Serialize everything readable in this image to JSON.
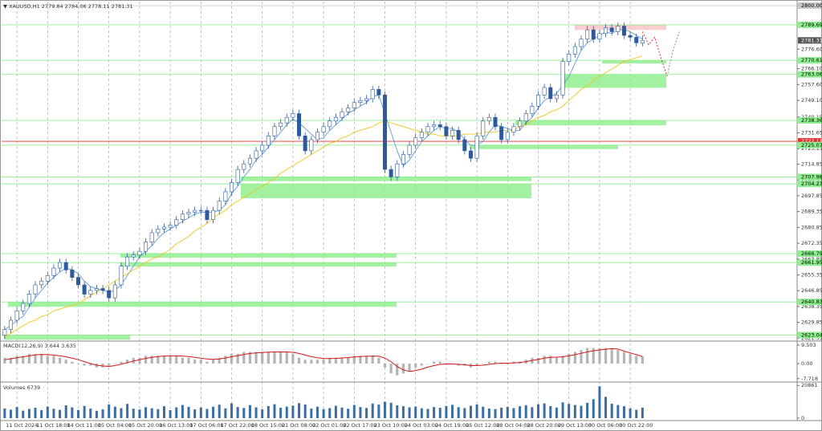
{
  "chart_data": {
    "type": "candlestick",
    "header": {
      "symbol": "XAUUSD,H1"
    },
    "categories": [
      null,
      null,
      "11 Oct 2024",
      null,
      null,
      null,
      null,
      "11 Oct 18:00",
      null,
      null,
      null,
      null,
      "14 Oct 11:00",
      null,
      null,
      null,
      null,
      "15 Oct 04:00",
      null,
      null,
      null,
      null,
      "15 Oct 20:00",
      null,
      null,
      null,
      null,
      "16 Oct 13:00",
      null,
      null,
      null,
      null,
      "17 Oct 06:00",
      null,
      null,
      null,
      null,
      "17 Oct 22:00",
      null,
      null,
      null,
      null,
      "18 Oct 15:00",
      null,
      null,
      null,
      null,
      "21 Oct 08:00",
      null,
      null,
      null,
      null,
      "22 Oct 01:00",
      null,
      null,
      null,
      null,
      "22 Oct 17:00",
      null,
      null,
      null,
      null,
      "23 Oct 10:00",
      null,
      null,
      null,
      null,
      "24 Oct 03:00",
      null,
      null,
      null,
      null,
      "24 Oct 19:00",
      null,
      null,
      null,
      null,
      "25 Oct 12:00",
      null,
      null,
      null,
      null,
      "28 Oct 04:00",
      null,
      null,
      null,
      null,
      "28 Oct 20:00",
      null,
      null,
      null,
      null,
      "29 Oct 13:00",
      null,
      null,
      null,
      null,
      "30 Oct 06:00",
      null,
      null,
      null,
      null,
      "30 Oct 22:00",
      null,
      null
    ],
    "candles": {
      "open": [
        2623,
        2626,
        2631,
        2636,
        2640,
        2645,
        2650,
        2652,
        2655,
        2659,
        2662,
        2658,
        2654,
        2650,
        2645,
        2647,
        2648,
        2647,
        2643,
        2650,
        2660,
        2665,
        2666,
        2668,
        2673,
        2678,
        2680,
        2681,
        2682,
        2685,
        2688,
        2689,
        2690,
        2690,
        2685,
        2690,
        2695,
        2700,
        2705,
        2712,
        2715,
        2718,
        2722,
        2725,
        2730,
        2735,
        2737,
        2740,
        2742,
        2730,
        2722,
        2728,
        2732,
        2735,
        2738,
        2740,
        2743,
        2745,
        2748,
        2749,
        2750,
        2755,
        2752,
        2712,
        2708,
        2715,
        2720,
        2725,
        2729,
        2732,
        2735,
        2736,
        2735,
        2730,
        2733,
        2728,
        2722,
        2718,
        2730,
        2738,
        2740,
        2735,
        2728,
        2732,
        2735,
        2738,
        2742,
        2746,
        2752,
        2756,
        2750,
        2752,
        2770,
        2774,
        2778,
        2782,
        2787,
        2782,
        2785,
        2788,
        2786,
        2789,
        2784,
        2783,
        2779.84
      ],
      "high": [
        2628,
        2633,
        2638,
        2642,
        2647,
        2652,
        2654,
        2657,
        2661,
        2664,
        2664,
        2660,
        2656,
        2652,
        2649,
        2650,
        2650,
        2649,
        2652,
        2662,
        2667,
        2668,
        2670,
        2675,
        2680,
        2682,
        2683,
        2684,
        2687,
        2690,
        2691,
        2692,
        2692,
        2692,
        2692,
        2697,
        2702,
        2707,
        2714,
        2717,
        2720,
        2724,
        2727,
        2732,
        2737,
        2739,
        2742,
        2744,
        2744,
        2732,
        2730,
        2734,
        2737,
        2740,
        2742,
        2745,
        2747,
        2750,
        2751,
        2752,
        2757,
        2757,
        2754,
        2714,
        2717,
        2722,
        2727,
        2731,
        2734,
        2737,
        2738,
        2738,
        2737,
        2735,
        2735,
        2730,
        2724,
        2732,
        2740,
        2742,
        2742,
        2737,
        2734,
        2737,
        2740,
        2744,
        2748,
        2754,
        2758,
        2758,
        2754,
        2772,
        2776,
        2780,
        2784,
        2789,
        2789,
        2787,
        2790,
        2790,
        2791,
        2791,
        2786,
        2785,
        2784.06
      ],
      "low": [
        2621,
        2624,
        2629,
        2634,
        2638,
        2643,
        2648,
        2650,
        2653,
        2657,
        2656,
        2652,
        2648,
        2643,
        2643,
        2645,
        2645,
        2641,
        2641,
        2648,
        2658,
        2663,
        2664,
        2666,
        2671,
        2676,
        2678,
        2679,
        2680,
        2683,
        2686,
        2687,
        2688,
        2683,
        2683,
        2688,
        2693,
        2698,
        2703,
        2710,
        2713,
        2716,
        2720,
        2723,
        2728,
        2733,
        2735,
        2738,
        2728,
        2720,
        2720,
        2726,
        2730,
        2733,
        2736,
        2738,
        2741,
        2743,
        2746,
        2747,
        2748,
        2750,
        2710,
        2706,
        2706,
        2713,
        2718,
        2723,
        2727,
        2730,
        2733,
        2733,
        2728,
        2728,
        2726,
        2720,
        2716,
        2716,
        2728,
        2736,
        2733,
        2726,
        2726,
        2730,
        2733,
        2736,
        2740,
        2744,
        2750,
        2748,
        2748,
        2750,
        2768,
        2772,
        2776,
        2780,
        2780,
        2780,
        2783,
        2784,
        2784,
        2782,
        2781,
        2778,
        2778.11
      ],
      "close": [
        2626,
        2631,
        2636,
        2640,
        2645,
        2650,
        2652,
        2655,
        2659,
        2662,
        2658,
        2654,
        2650,
        2645,
        2647,
        2648,
        2647,
        2643,
        2650,
        2660,
        2665,
        2666,
        2668,
        2673,
        2678,
        2680,
        2681,
        2682,
        2685,
        2688,
        2689,
        2690,
        2690,
        2685,
        2690,
        2695,
        2700,
        2705,
        2712,
        2715,
        2718,
        2722,
        2725,
        2730,
        2735,
        2737,
        2740,
        2742,
        2730,
        2722,
        2728,
        2732,
        2735,
        2738,
        2740,
        2743,
        2745,
        2748,
        2749,
        2750,
        2755,
        2752,
        2712,
        2708,
        2715,
        2720,
        2725,
        2729,
        2732,
        2735,
        2736,
        2735,
        2730,
        2733,
        2728,
        2722,
        2718,
        2730,
        2738,
        2740,
        2735,
        2728,
        2732,
        2735,
        2738,
        2742,
        2746,
        2752,
        2756,
        2750,
        2752,
        2770,
        2774,
        2778,
        2782,
        2787,
        2782,
        2785,
        2788,
        2786,
        2789,
        2784,
        2783,
        2780,
        2781.31
      ]
    },
    "up_color": "#ffffff",
    "down_color": "#2d5a9c",
    "outline_color": "#2d5a9c",
    "ylim": [
      2620.2,
      2801.3
    ],
    "yticks": [
      2621.35,
      2629.85,
      2638.35,
      2646.85,
      2655.35,
      2663.85,
      2672.35,
      2680.85,
      2689.35,
      2697.85,
      2706.35,
      2714.85,
      2723.15,
      2731.65,
      2740.15,
      {
        "value": 2749.1,
        "label": "2749.10"
      },
      {
        "value": 2757.6,
        "label": "2757.60"
      },
      {
        "value": 2766.1,
        "label": "2766.10"
      },
      {
        "value": 2776.6,
        "label": "2776.60"
      }
    ],
    "moving_averages": [
      {
        "color": "#5b9bd5",
        "values": [
          2626,
          2628,
          2631,
          2633,
          2638,
          2643,
          2647,
          2651,
          2654,
          2657,
          2659,
          2658,
          2656,
          2652,
          2649,
          2648,
          2647,
          2646,
          2647,
          2650,
          2655,
          2660,
          2665,
          2668,
          2671,
          2675,
          2678,
          2680,
          2682,
          2684,
          2686,
          2688,
          2689,
          2689,
          2689,
          2690,
          2693,
          2699,
          2703,
          2708,
          2712,
          2717,
          2720,
          2724,
          2728,
          2732,
          2736,
          2739,
          2737,
          2734,
          2731,
          2728,
          2729,
          2733,
          2736,
          2739,
          2742,
          2744,
          2746,
          2748,
          2751,
          2752,
          2742,
          2732,
          2722,
          2714,
          2717,
          2722,
          2727,
          2730,
          2733,
          2735,
          2734,
          2734,
          2732,
          2728,
          2725,
          2725,
          2727,
          2732,
          2736,
          2735,
          2734,
          2733,
          2733,
          2737,
          2740,
          2745,
          2749,
          2751,
          2753,
          2757,
          2762,
          2769,
          2776,
          2780,
          2782,
          2784,
          2786,
          2785,
          2787,
          2787,
          2786,
          2784,
          2782
        ]
      },
      {
        "color": "#f0c419",
        "values": [
          2622,
          2624,
          2626,
          2628,
          2630,
          2631,
          2633,
          2634,
          2636,
          2637,
          2638,
          2639,
          2640,
          2642,
          2644,
          2646,
          2648,
          2650,
          2652,
          2654,
          2656,
          2658,
          2660,
          2662,
          2664,
          2665,
          2667,
          2669,
          2672,
          2674,
          2676,
          2679,
          2681,
          2683,
          2686,
          2688,
          2690,
          2693,
          2695,
          2697,
          2699,
          2701,
          2703,
          2705,
          2707,
          2710,
          2712,
          2714,
          2716,
          2718,
          2720,
          2722,
          2724,
          2726,
          2727,
          2729,
          2730,
          2732,
          2733,
          2734,
          2735,
          2737,
          2738,
          2737,
          2736,
          2735,
          2734,
          2733,
          2732,
          2731,
          2731,
          2730,
          2730,
          2730,
          2730,
          2731,
          2731,
          2731,
          2732,
          2732,
          2732,
          2733,
          2733,
          2733,
          2735,
          2736,
          2738,
          2740,
          2741,
          2743,
          2744,
          2746,
          2749,
          2752,
          2755,
          2757,
          2760,
          2762,
          2764,
          2766,
          2768,
          2770,
          2771,
          2772,
          2773
        ]
      }
    ],
    "forecasts": [
      {
        "color": "#e03030",
        "x": [
          104,
          105,
          106,
          107,
          108
        ],
        "values": [
          2786,
          2779,
          2783,
          2772,
          2762
        ]
      },
      {
        "color": "#8a8a8a",
        "x": [
          108,
          109,
          110
        ],
        "values": [
          2762,
          2776,
          2786
        ]
      }
    ],
    "levels": [
      {
        "value": 2800,
        "label": "2800.00",
        "color": "#c8c8c8"
      },
      {
        "value": 2789.69,
        "color": "#90ee90"
      },
      {
        "value": 2770.61,
        "color": "#90ee90"
      },
      {
        "value": 2763.06,
        "color": "#90ee90"
      },
      {
        "value": 2738.36,
        "color": "#90ee90"
      },
      {
        "value": 2727.11,
        "color": "#e03030"
      },
      {
        "value": 2725.07,
        "color": "#90ee90"
      },
      {
        "value": 2707.98,
        "color": "#90ee90"
      },
      {
        "value": 2704.23,
        "color": "#90ee90"
      },
      {
        "value": 2666.79,
        "color": "#90ee90"
      },
      {
        "value": 2661.95,
        "color": "#90ee90"
      },
      {
        "value": 2640.83,
        "color": "#90ee90"
      },
      {
        "value": 2623.04,
        "color": "#90ee90"
      }
    ],
    "zones": [
      {
        "low": 2786.9,
        "high": 2789.69,
        "color": "#f7c6c6"
      },
      {
        "low": 2768.9,
        "high": 2770.61,
        "color": "#90ee90"
      },
      {
        "low": 2755.8,
        "high": 2763.06,
        "color": "#90ee90"
      },
      {
        "low": 2735.7,
        "high": 2738.36,
        "color": "#90ee90"
      },
      {
        "low": 2722.9,
        "high": 2725.07,
        "color": "#90ee90"
      },
      {
        "low": 2705.7,
        "high": 2707.98,
        "color": "#90ee90"
      },
      {
        "low": 2696.5,
        "high": 2704.23,
        "color": "#90ee90"
      },
      {
        "low": 2664.6,
        "high": 2666.79,
        "color": "#90ee90"
      },
      {
        "low": 2659.8,
        "high": 2661.95,
        "color": "#90ee90"
      },
      {
        "low": 2638.2,
        "high": 2640.83,
        "color": "#90ee90"
      },
      {
        "low": 2620.5,
        "high": 2623.04,
        "color": "#90ee90"
      }
    ],
    "macd": {
      "label": "MACD(12,26,9)",
      "hist_color": "#b4b4b4",
      "signal_color": "#d01818",
      "ylim": [
        -9.05,
        10.73
      ],
      "yticks": [
        9.503,
        {
          "value": 0,
          "label": "0.00"
        },
        -7.718
      ],
      "histogram": [
        3,
        3,
        4,
        4,
        5,
        5,
        5,
        4,
        4,
        3,
        2,
        1,
        0,
        -1,
        -1,
        -2,
        -2,
        -1,
        0,
        1,
        2,
        3,
        3,
        4,
        4,
        4,
        4,
        4,
        4,
        3,
        3,
        2,
        2,
        1,
        2,
        3,
        4,
        5,
        5,
        6,
        6,
        6,
        6,
        6,
        6,
        6,
        6,
        5,
        3,
        2,
        2,
        2,
        2,
        3,
        3,
        3,
        3,
        4,
        4,
        4,
        4,
        3,
        -2,
        -5,
        -6,
        -5,
        -4,
        -2,
        -1,
        0,
        1,
        1,
        0,
        0,
        -1,
        -1,
        -2,
        -1,
        0,
        1,
        1,
        0,
        0,
        1,
        1,
        2,
        3,
        3,
        4,
        4,
        3,
        4,
        5,
        6,
        7,
        8,
        8,
        8,
        8,
        8,
        7,
        6,
        5,
        4,
        3.644
      ],
      "signal": [
        2,
        2.5,
        3,
        3.5,
        4,
        4.5,
        4.7,
        4.6,
        4.4,
        4,
        3.5,
        2.8,
        2,
        1,
        0,
        -0.8,
        -1.2,
        -1.4,
        -1,
        -0.3,
        0.5,
        1.3,
        2,
        2.7,
        3.2,
        3.6,
        3.9,
        4,
        4,
        3.9,
        3.6,
        3.2,
        2.8,
        2.4,
        2.2,
        2.4,
        2.9,
        3.5,
        4.1,
        4.7,
        5.2,
        5.5,
        5.7,
        5.9,
        6,
        6,
        6,
        5.8,
        5.2,
        4.4,
        3.6,
        3,
        2.6,
        2.6,
        2.7,
        2.9,
        3.1,
        3.4,
        3.6,
        3.8,
        3.9,
        3.8,
        2.8,
        1,
        -1.5,
        -3.2,
        -4,
        -3.6,
        -2.8,
        -1.8,
        -1,
        -0.4,
        -0.2,
        -0.2,
        -0.4,
        -0.6,
        -1,
        -1,
        -0.8,
        -0.4,
        0,
        0.2,
        0.2,
        0.4,
        0.6,
        1,
        1.6,
        2.2,
        2.8,
        3.2,
        3.3,
        3.5,
        4,
        4.6,
        5.3,
        6,
        6.6,
        7,
        7.4,
        7.7,
        7.5,
        6.4,
        5.5,
        4.6,
        3.635
      ]
    },
    "volume": {
      "label": "Volumes",
      "color": "#3a6ea5",
      "ylim": [
        0,
        22000
      ],
      "yticks": [
        0,
        20861
      ],
      "values": [
        6200,
        5400,
        7100,
        4800,
        5900,
        6600,
        5100,
        7400,
        6000,
        5300,
        8200,
        6900,
        5200,
        7800,
        6100,
        4700,
        5600,
        8800,
        7300,
        6400,
        9100,
        6000,
        5500,
        7000,
        6300,
        5800,
        7600,
        5100,
        6900,
        8400,
        7200,
        5600,
        6800,
        5900,
        7300,
        8600,
        6200,
        9400,
        7100,
        6500,
        8300,
        6900,
        5700,
        7700,
        8900,
        6600,
        7400,
        8000,
        9600,
        8700,
        6100,
        7300,
        5800,
        6400,
        7900,
        6800,
        6000,
        8400,
        7100,
        6500,
        9300,
        8600,
        10400,
        9800,
        8200,
        7600,
        6900,
        7400,
        6300,
        5900,
        7100,
        6600,
        7800,
        8500,
        7000,
        6400,
        7900,
        8800,
        7300,
        6100,
        5800,
        6700,
        7200,
        6400,
        7600,
        8300,
        7000,
        8900,
        9400,
        7700,
        6800,
        10100,
        9100,
        8400,
        7900,
        9800,
        12100,
        20300,
        13600,
        9200,
        8400,
        7600,
        6200,
        5300,
        6739
      ]
    }
  }
}
